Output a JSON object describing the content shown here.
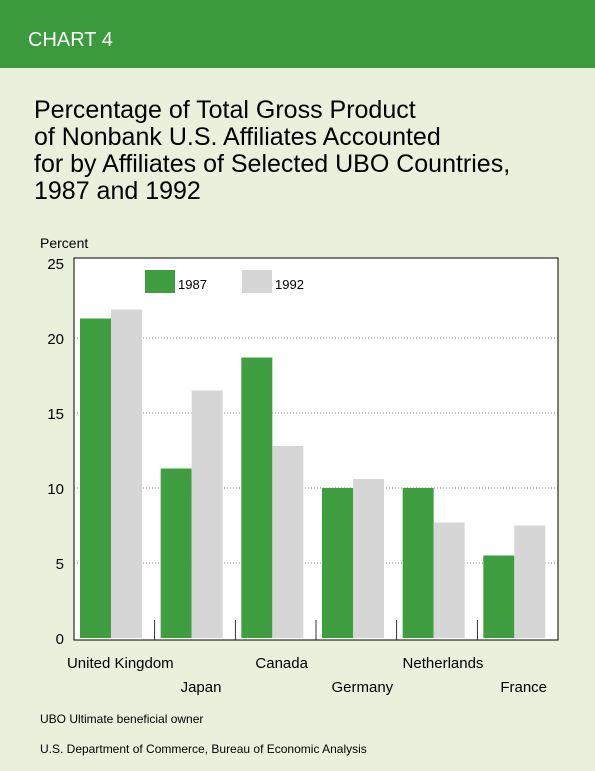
{
  "header": "CHART 4",
  "chart_data": {
    "type": "bar",
    "title": [
      "Percentage of Total Gross Product",
      "of Nonbank U.S. Affiliates Accounted",
      "for by Affiliates of Selected UBO Countries,",
      "1987 and 1992"
    ],
    "y_label": "Percent",
    "categories": [
      "United Kingdom",
      "Japan",
      "Canada",
      "Germany",
      "Netherlands",
      "France"
    ],
    "series": [
      {
        "name": "1987",
        "color": "#3f9e3f",
        "values": [
          21.3,
          11.3,
          18.7,
          10.0,
          10.0,
          5.5
        ]
      },
      {
        "name": "1992",
        "color": "#d6d6d6",
        "values": [
          21.9,
          16.5,
          12.8,
          10.6,
          7.7,
          7.5
        ]
      }
    ],
    "ylim": [
      0,
      25
    ],
    "yticks": [
      0,
      5,
      10,
      15,
      20,
      25
    ],
    "grid": true
  },
  "notes": [
    "UBO  Ultimate beneficial owner",
    "U.S. Department of Commerce, Bureau of Economic Analysis"
  ]
}
